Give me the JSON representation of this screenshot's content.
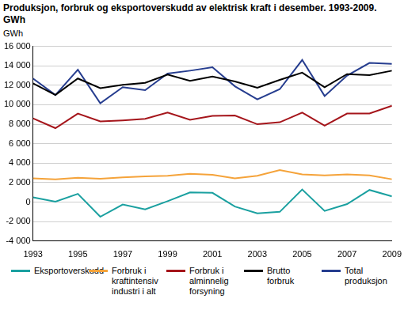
{
  "chart_data": {
    "type": "line",
    "title": "Produksjon, forbruk og eksportoverskudd av elektrisk kraft i desember. 1993-2009. GWh",
    "y_label": "GWh",
    "x": [
      1993,
      1994,
      1995,
      1996,
      1997,
      1998,
      1999,
      2000,
      2001,
      2002,
      2003,
      2004,
      2005,
      2006,
      2007,
      2008,
      2009
    ],
    "xlim": [
      1993,
      2009
    ],
    "xticks": [
      1993,
      1995,
      1997,
      1999,
      2001,
      2003,
      2005,
      2007,
      2009
    ],
    "ylim": [
      -4000,
      16000
    ],
    "yticks": [
      {
        "value": -4000,
        "label": "-4 000"
      },
      {
        "value": -2000,
        "label": "-2 000"
      },
      0,
      {
        "value": 2000,
        "label": "2 000"
      },
      {
        "value": 4000,
        "label": "4 000"
      },
      {
        "value": 6000,
        "label": "6 000"
      },
      {
        "value": 8000,
        "label": "8 000"
      },
      {
        "value": 10000,
        "label": "10 000"
      },
      {
        "value": 12000,
        "label": "12 000"
      },
      {
        "value": 14000,
        "label": "14 000"
      },
      {
        "value": 16000,
        "label": "16 000"
      }
    ],
    "grid": true,
    "legend": "bottom",
    "series": [
      {
        "name": "Eksportoverskudd",
        "color": "#1aa0a0",
        "values": [
          500,
          50,
          850,
          -1500,
          -250,
          -750,
          100,
          1000,
          950,
          -450,
          -1150,
          -1000,
          1300,
          -900,
          -200,
          1250,
          600
        ]
      },
      {
        "name": "Forbruk i kraftintensiv industri i alt",
        "color": "#f5a33a",
        "values": [
          2450,
          2350,
          2500,
          2400,
          2550,
          2650,
          2700,
          2900,
          2800,
          2450,
          2700,
          3300,
          2850,
          2750,
          2850,
          2750,
          2350
        ]
      },
      {
        "name": "Forbruk i alminnelig forsyning",
        "color": "#a5151b",
        "values": [
          8600,
          7600,
          9100,
          8300,
          8400,
          8550,
          9200,
          8450,
          8850,
          8900,
          8000,
          8200,
          9200,
          7850,
          9100,
          9100,
          9900
        ]
      },
      {
        "name": "Brutto forbruk",
        "color": "#000000",
        "values": [
          12200,
          11000,
          12700,
          11700,
          12050,
          12250,
          13100,
          12450,
          12900,
          12400,
          11750,
          12550,
          13300,
          11800,
          13150,
          13050,
          13500
        ]
      },
      {
        "name": "Total produksjon",
        "color": "#263d8f",
        "values": [
          12700,
          11000,
          13600,
          10150,
          11800,
          11500,
          13200,
          13500,
          13850,
          11900,
          10550,
          11600,
          14600,
          10900,
          13000,
          14300,
          14200
        ]
      }
    ]
  }
}
